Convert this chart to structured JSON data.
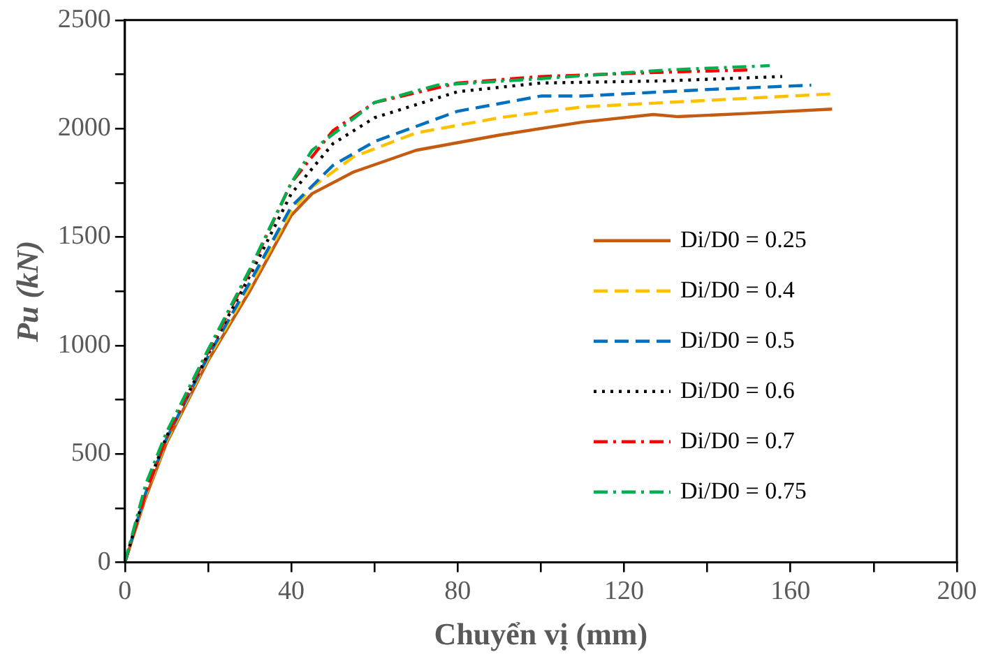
{
  "chart_data": {
    "type": "line",
    "xlabel": "Chuyển vị (mm)",
    "ylabel": "Pu (kN)",
    "xlim": [
      0,
      200
    ],
    "ylim": [
      0,
      2500
    ],
    "xticks": [
      0,
      {
        "value": 20,
        "label": null
      },
      40,
      {
        "value": 60,
        "label": null
      },
      80,
      {
        "value": 100,
        "label": null
      },
      120,
      {
        "value": 140,
        "label": null
      },
      160,
      {
        "value": 180,
        "label": null
      },
      200
    ],
    "yticks": [
      0,
      {
        "value": 250,
        "label": null
      },
      500,
      {
        "value": 750,
        "label": null
      },
      1000,
      {
        "value": 1250,
        "label": null
      },
      1500,
      {
        "value": 1750,
        "label": null
      },
      2000,
      {
        "value": 2250,
        "label": null
      },
      2500
    ],
    "grid": false,
    "legend": "right",
    "marker": "none",
    "series": [
      {
        "name": "Di/D0 = 0.25",
        "color": "#c55a11",
        "line_style": "solid",
        "x": [
          0,
          5,
          10,
          20,
          30,
          40,
          45,
          55,
          70,
          90,
          110,
          127,
          133,
          150,
          170
        ],
        "values": [
          0,
          300,
          550,
          930,
          1250,
          1600,
          1700,
          1800,
          1900,
          1970,
          2030,
          2065,
          2055,
          2070,
          2090
        ]
      },
      {
        "name": "Di/D0 = 0.4",
        "color": "#ffc000",
        "line_style": "dashed",
        "x": [
          0,
          5,
          10,
          20,
          30,
          40,
          45,
          55,
          70,
          90,
          110,
          140,
          170
        ],
        "values": [
          0,
          310,
          560,
          940,
          1270,
          1620,
          1730,
          1870,
          1980,
          2050,
          2100,
          2130,
          2160
        ]
      },
      {
        "name": "Di/D0 = 0.5",
        "color": "#0070c0",
        "line_style": "dashed",
        "x": [
          0,
          5,
          10,
          20,
          30,
          40,
          50,
          60,
          80,
          100,
          110,
          140,
          165
        ],
        "values": [
          0,
          320,
          570,
          950,
          1290,
          1640,
          1830,
          1940,
          2080,
          2150,
          2150,
          2180,
          2200
        ]
      },
      {
        "name": "Di/D0 = 0.6",
        "color": "#000000",
        "line_style": "dotted",
        "x": [
          0,
          5,
          10,
          20,
          30,
          40,
          50,
          60,
          80,
          100,
          130,
          158
        ],
        "values": [
          0,
          330,
          580,
          960,
          1320,
          1700,
          1930,
          2050,
          2170,
          2210,
          2220,
          2240
        ]
      },
      {
        "name": "Di/D0 = 0.7",
        "color": "#ff0000",
        "line_style": "dashdot",
        "x": [
          0,
          5,
          10,
          20,
          30,
          40,
          50,
          60,
          80,
          100,
          130,
          150
        ],
        "values": [
          0,
          320,
          580,
          970,
          1340,
          1750,
          1990,
          2120,
          2210,
          2240,
          2260,
          2270
        ]
      },
      {
        "name": "Di/D0 = 0.75",
        "color": "#00b050",
        "line_style": "dashdot",
        "x": [
          0,
          5,
          10,
          20,
          30,
          40,
          45,
          60,
          75,
          100,
          130,
          155
        ],
        "values": [
          0,
          360,
          600,
          980,
          1350,
          1750,
          1900,
          2120,
          2200,
          2230,
          2270,
          2290
        ]
      }
    ]
  }
}
